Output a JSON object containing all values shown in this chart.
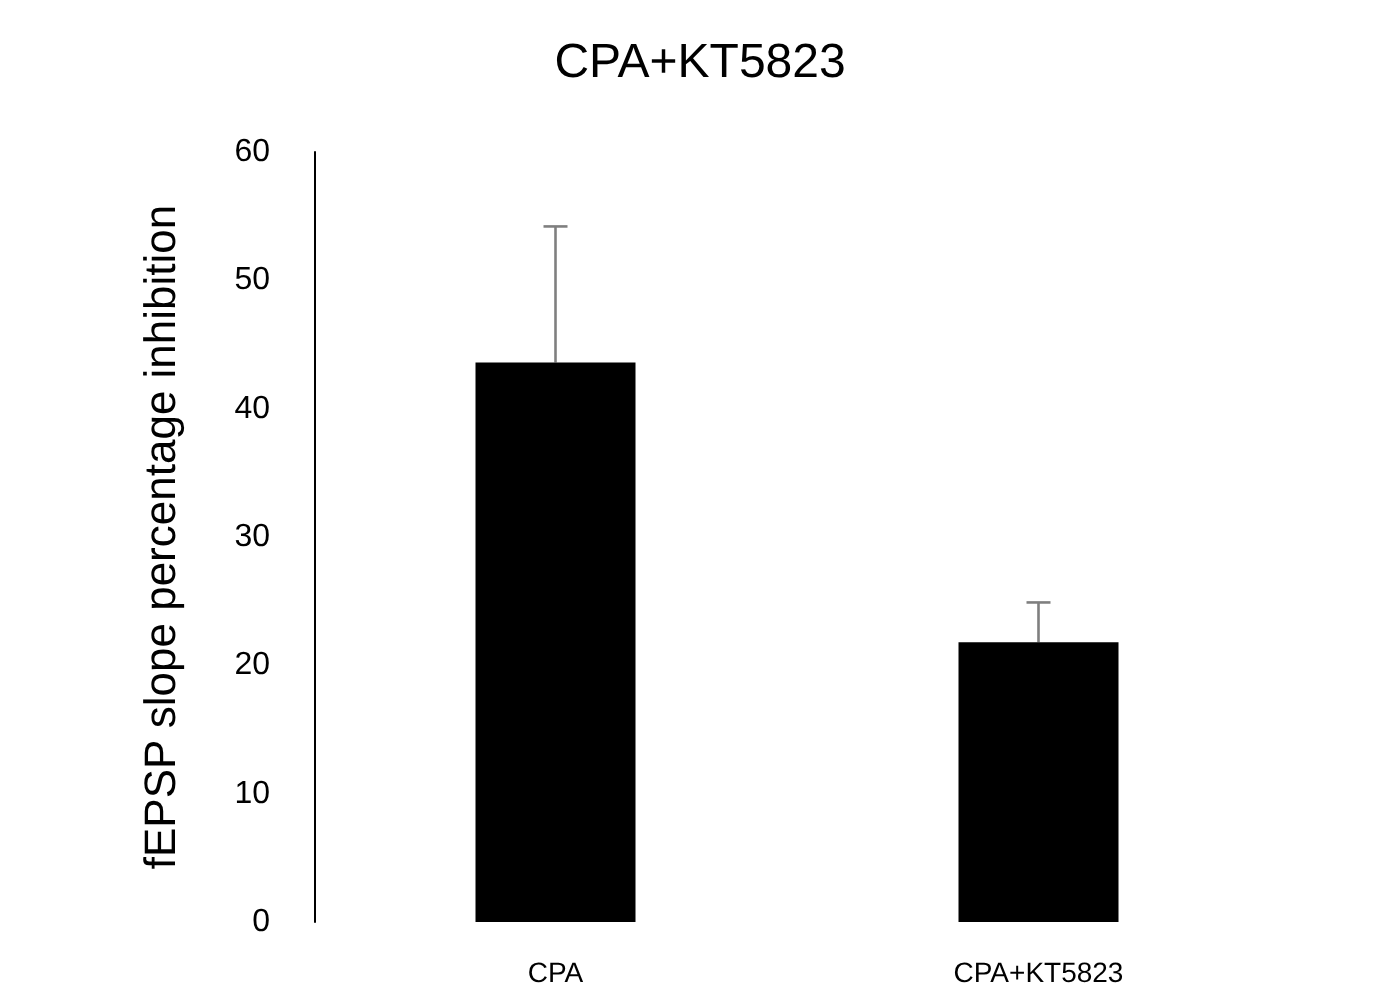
{
  "chart_data": {
    "type": "bar",
    "title": "CPA+KT5823",
    "ylabel": "fEPSP slope percentage inhibition",
    "categories": [
      "CPA",
      "CPA+KT5823"
    ],
    "series": [
      {
        "color": "#000000",
        "values": [
          43.6,
          21.8
        ],
        "errors": [
          [
            43.6,
            54.2
          ],
          [
            21.8,
            24.9
          ]
        ]
      }
    ],
    "ylim": [
      0,
      60
    ],
    "yticks": [
      0,
      10,
      20,
      30,
      40,
      50,
      60
    ],
    "grid": false
  }
}
